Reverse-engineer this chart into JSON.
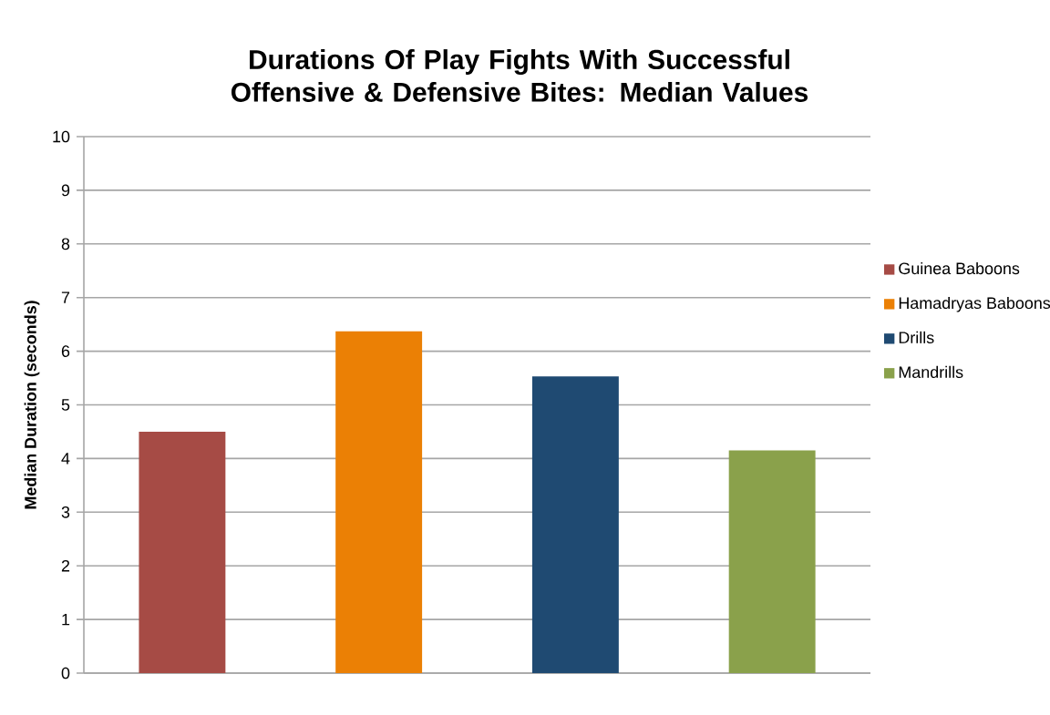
{
  "chart_data": {
    "type": "bar",
    "title": "Durations Of Play Fights With Successful Offensive & Defensive Bites: Median Values",
    "ylabel": "Median Duration (seconds)",
    "categories": [
      null,
      null,
      null,
      null
    ],
    "series": [
      {
        "name": "Guinea Baboons",
        "color": "#a64b45",
        "values": [
          4.5,
          null,
          null,
          null
        ]
      },
      {
        "name": "Hamadryas Baboons",
        "color": "#eb8005",
        "values": [
          null,
          6.37,
          null,
          null
        ]
      },
      {
        "name": "Drills",
        "color": "#1f4a72",
        "values": [
          null,
          null,
          5.53,
          null
        ]
      },
      {
        "name": "Mandrills",
        "color": "#8aa14b",
        "values": [
          null,
          null,
          null,
          4.15
        ]
      }
    ],
    "ylim": [
      0,
      10
    ],
    "yticks": [
      0,
      1,
      2,
      3,
      4,
      5,
      6,
      7,
      8,
      9,
      10
    ],
    "grid": "y",
    "legend": "right",
    "tick_labels": "y"
  }
}
